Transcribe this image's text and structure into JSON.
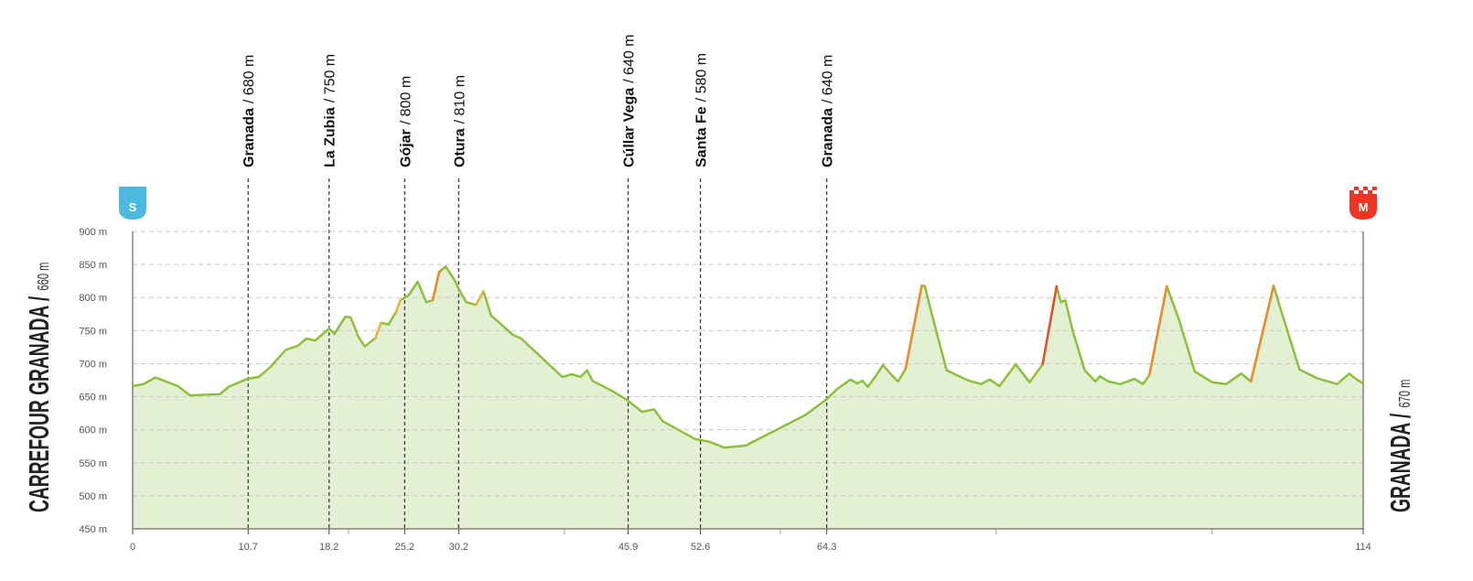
{
  "chart_data": {
    "type": "elevation-profile",
    "start": {
      "name": "CARREFOUR GRANADA /",
      "elevation": "660 m",
      "badge": "S",
      "badge_color": "#4db8e0"
    },
    "finish": {
      "name": "GRANADA /",
      "elevation": "670 m",
      "badge": "M",
      "badge_color": "#ee3524"
    },
    "waypoints": [
      {
        "name": "Granada",
        "km": 10.7,
        "elevation": {
          "value": 680,
          "label": "/ 680 m"
        }
      },
      {
        "name": "La Zubia",
        "km": 18.2,
        "elevation": {
          "value": 750,
          "label": "/ 750 m"
        }
      },
      {
        "name": "Gójar",
        "km": 25.2,
        "elevation": {
          "value": 800,
          "label": "/ 800 m"
        }
      },
      {
        "name": "Otura",
        "km": 30.2,
        "elevation": {
          "value": 810,
          "label": "/ 810 m"
        }
      },
      {
        "name": "Cúllar Vega",
        "km": 45.9,
        "elevation": {
          "value": 640,
          "label": "/ 640 m"
        }
      },
      {
        "name": "Santa Fe",
        "km": 52.6,
        "elevation": {
          "value": 580,
          "label": "/ 580 m"
        }
      },
      {
        "name": "Granada",
        "km": 64.3,
        "elevation": {
          "value": 640,
          "label": "/ 640 m"
        }
      }
    ],
    "x": [
      0,
      1.0,
      2.1,
      4.2,
      5.3,
      8.1,
      8.9,
      10.6,
      11.7,
      12.7,
      14.2,
      15.3,
      16.1,
      16.9,
      18.2,
      18.7,
      19.7,
      20.2,
      20.9,
      21.5,
      22.5,
      23.0,
      23.7,
      24.4,
      24.8,
      25.6,
      26.4,
      27.2,
      27.8,
      28.4,
      29.0,
      29.8,
      30.3,
      30.9,
      31.8,
      32.5,
      33.2,
      35.2,
      36.0,
      39.8,
      40.7,
      41.5,
      42.1,
      42.6,
      44.5,
      45.8,
      47.2,
      48.3,
      49.1,
      52.1,
      53.4,
      54.8,
      56.8,
      62.3,
      64.2,
      65.3,
      66.5,
      67.1,
      67.6,
      68.1,
      68.8,
      69.5,
      70.3,
      70.9,
      71.6,
      73.1,
      73.4,
      74.0,
      75.4,
      76.3,
      77.5,
      78.6,
      79.4,
      80.3,
      81.8,
      83.1,
      84.3,
      85.6,
      86.0,
      86.4,
      87.1,
      88.2,
      89.2,
      89.6,
      90.4,
      91.5,
      92.8,
      93.6,
      94.2,
      95.8,
      96.9,
      98.4,
      100.0,
      101.3,
      102.7,
      103.6,
      105.7,
      106.4,
      108.1,
      109.7,
      111.6,
      112.7,
      113.4,
      114.0
    ],
    "values": [
      666,
      669,
      679,
      666,
      652,
      654,
      665,
      677,
      680,
      694,
      721,
      727,
      738,
      735,
      753,
      745,
      771,
      770,
      741,
      726,
      739,
      762,
      759,
      778,
      796,
      804,
      824,
      793,
      796,
      839,
      847,
      827,
      810,
      793,
      789,
      810,
      773,
      744,
      738,
      680,
      684,
      680,
      690,
      674,
      658,
      645,
      627,
      631,
      613,
      586,
      582,
      573,
      576,
      622,
      645,
      662,
      676,
      670,
      674,
      665,
      680,
      698,
      683,
      673,
      692,
      818,
      817,
      777,
      690,
      683,
      674,
      669,
      676,
      666,
      699,
      672,
      699,
      817,
      793,
      796,
      749,
      690,
      673,
      681,
      673,
      669,
      677,
      669,
      683,
      817,
      768,
      688,
      672,
      669,
      685,
      673,
      818,
      780,
      691,
      678,
      669,
      685,
      676,
      670
    ],
    "line_color": "#8cbf3a",
    "fill_color": "#e4f0d4",
    "xlim": [
      0,
      114
    ],
    "xticks": [
      0,
      10.7,
      18.2,
      25.2,
      30.2,
      45.9,
      52.6,
      64.3,
      114
    ],
    "minor_xticks": [
      20,
      40,
      60,
      80,
      100
    ],
    "ylim": [
      450,
      900
    ],
    "yticks": [
      {
        "value": 450,
        "label": "450 m"
      },
      {
        "value": 500,
        "label": "500 m"
      },
      {
        "value": 550,
        "label": "550 m"
      },
      {
        "value": 600,
        "label": "600 m"
      },
      {
        "value": 650,
        "label": "650 m"
      },
      {
        "value": 700,
        "label": "700 m"
      },
      {
        "value": 750,
        "label": "750 m"
      },
      {
        "value": 800,
        "label": "800 m"
      },
      {
        "value": 850,
        "label": "850 m"
      },
      {
        "value": 900,
        "label": "900 m"
      }
    ],
    "grid": true
  }
}
